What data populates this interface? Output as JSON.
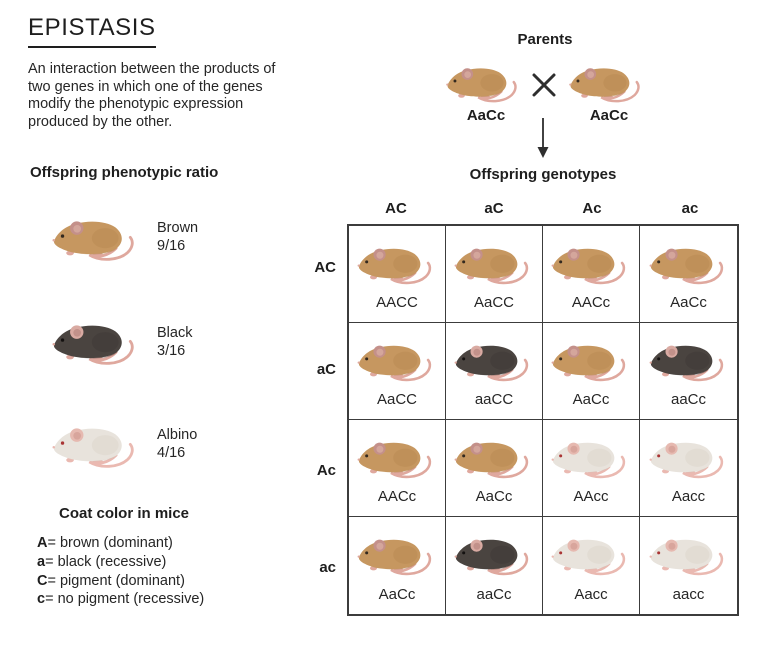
{
  "title": "EPISTASIS",
  "description": "An interaction between the products of\ntwo genes in which one of the genes\nmodify the phenotypic expression\nproduced by the other.",
  "phenotypic_ratio": {
    "heading": "Offspring phenotypic ratio",
    "items": [
      {
        "name": "Brown",
        "fraction": "9/16",
        "phenotype": "brown"
      },
      {
        "name": "Black",
        "fraction": "3/16",
        "phenotype": "black"
      },
      {
        "name": "Albino",
        "fraction": "4/16",
        "phenotype": "albino"
      }
    ]
  },
  "legend": {
    "heading": "Coat color in mice",
    "items": [
      {
        "allele": "A",
        "meaning": "= brown (dominant)"
      },
      {
        "allele": "a",
        "meaning": "= black (recessive)"
      },
      {
        "allele": "C",
        "meaning": "= pigment (dominant)"
      },
      {
        "allele": "c",
        "meaning": "= no pigment (recessive)"
      }
    ]
  },
  "parents": {
    "heading": "Parents",
    "cross_symbol": "×",
    "left_parent": {
      "genotype": "AaCc",
      "phenotype": "brown"
    },
    "right_parent": {
      "genotype": "AaCc",
      "phenotype": "brown"
    }
  },
  "punnett": {
    "heading": "Offspring genotypes",
    "col_headers": [
      "AC",
      "aC",
      "Ac",
      "ac"
    ],
    "row_headers": [
      "AC",
      "aC",
      "Ac",
      "ac"
    ],
    "rows": [
      [
        {
          "genotype": "AACC",
          "phenotype": "brown"
        },
        {
          "genotype": "AaCC",
          "phenotype": "brown"
        },
        {
          "genotype": "AACc",
          "phenotype": "brown"
        },
        {
          "genotype": "AaCc",
          "phenotype": "brown"
        }
      ],
      [
        {
          "genotype": "AaCC",
          "phenotype": "brown"
        },
        {
          "genotype": "aaCC",
          "phenotype": "black"
        },
        {
          "genotype": "AaCc",
          "phenotype": "brown"
        },
        {
          "genotype": "aaCc",
          "phenotype": "black"
        }
      ],
      [
        {
          "genotype": "AACc",
          "phenotype": "brown"
        },
        {
          "genotype": "AaCc",
          "phenotype": "brown"
        },
        {
          "genotype": "AAcc",
          "phenotype": "albino"
        },
        {
          "genotype": "Aacc",
          "phenotype": "albino"
        }
      ],
      [
        {
          "genotype": "AaCc",
          "phenotype": "brown"
        },
        {
          "genotype": "aaCc",
          "phenotype": "black"
        },
        {
          "genotype": "Aacc",
          "phenotype": "albino"
        },
        {
          "genotype": "aacc",
          "phenotype": "albino"
        }
      ]
    ]
  },
  "colors": {
    "brown_coat": "#c69760",
    "black_coat": "#4a4440",
    "albino_coat": "#e8e3dc",
    "pink_accent": "#dfa89e",
    "text": "#262626",
    "grid_border": "#3c3c3c"
  }
}
